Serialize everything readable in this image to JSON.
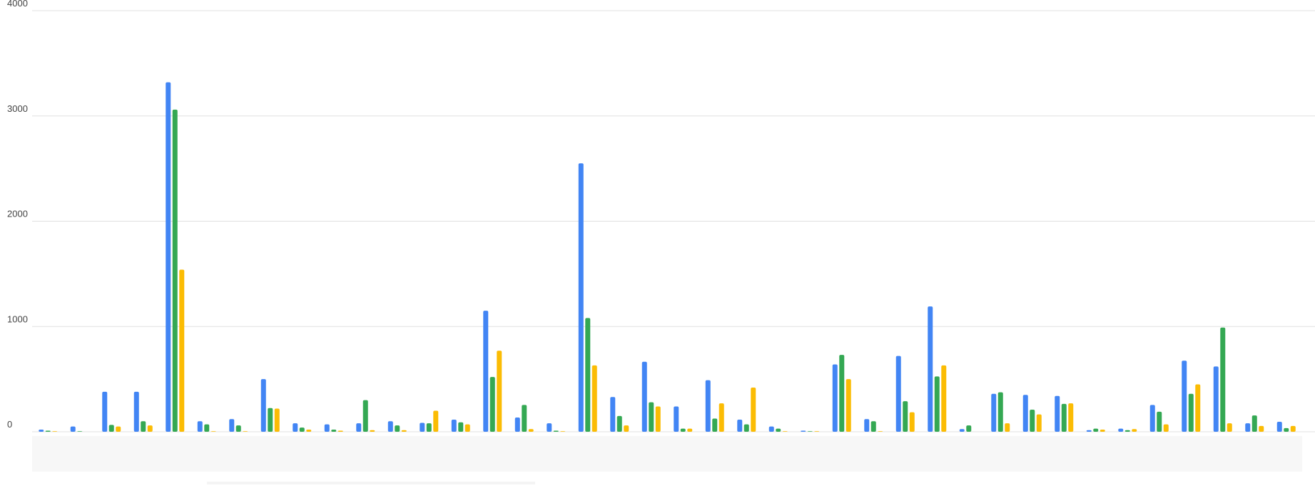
{
  "chart_data": {
    "type": "bar",
    "categories": [
      null,
      null,
      null,
      null,
      null,
      null,
      null,
      null,
      null,
      null,
      null,
      null,
      null,
      null,
      null,
      null,
      null,
      null,
      null,
      null,
      null,
      null,
      null,
      null,
      null,
      null,
      null,
      null,
      null,
      null,
      null,
      null,
      null,
      null,
      null,
      null,
      null,
      null,
      null,
      null
    ],
    "series": [
      {
        "color": "#4285f4",
        "values": [
          20,
          50,
          380,
          380,
          3320,
          100,
          120,
          500,
          80,
          70,
          80,
          100,
          85,
          115,
          1150,
          135,
          80,
          2550,
          330,
          665,
          240,
          490,
          115,
          50,
          10,
          640,
          120,
          720,
          1190,
          25,
          360,
          350,
          340,
          15,
          30,
          255,
          675,
          620,
          80,
          95
        ]
      },
      {
        "color": "#34a853",
        "values": [
          10,
          5,
          65,
          100,
          3060,
          70,
          60,
          225,
          40,
          20,
          300,
          60,
          80,
          90,
          520,
          255,
          10,
          1080,
          150,
          280,
          30,
          125,
          70,
          30,
          5,
          730,
          100,
          290,
          525,
          60,
          375,
          210,
          265,
          30,
          15,
          190,
          360,
          990,
          155,
          35
        ]
      },
      {
        "color": "#fbbc04",
        "values": [
          5,
          0,
          50,
          60,
          1540,
          5,
          5,
          220,
          20,
          10,
          15,
          15,
          200,
          70,
          770,
          25,
          5,
          630,
          60,
          240,
          30,
          270,
          420,
          5,
          5,
          500,
          5,
          185,
          630,
          0,
          80,
          165,
          270,
          20,
          25,
          70,
          450,
          80,
          55,
          55
        ]
      }
    ],
    "ylim": [
      0,
      4000
    ],
    "yticks": [
      0,
      1000,
      2000,
      3000,
      4000
    ],
    "grid": true
  }
}
